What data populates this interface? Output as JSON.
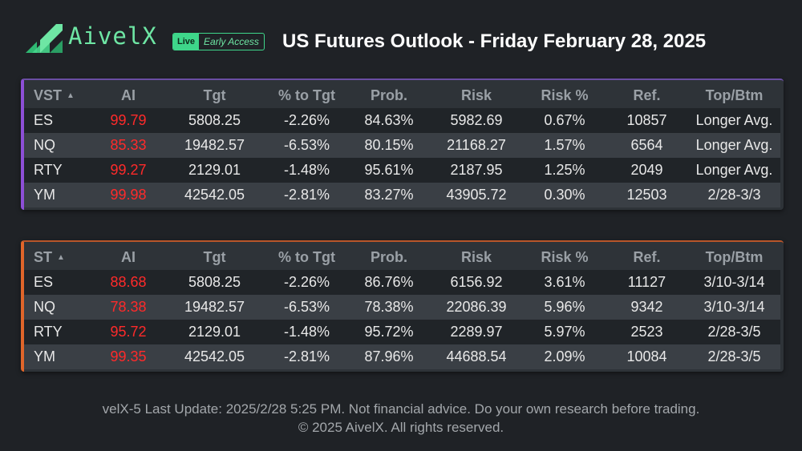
{
  "brand": {
    "name": "AivelX",
    "live": "Live",
    "early_access": "Early Access"
  },
  "title": "US Futures Outlook - Friday February 28, 2025",
  "colors": {
    "brand_green": "#6ee6a4",
    "ai_red": "#ff2a2a",
    "vst_accent": "#8d4fd6",
    "st_accent": "#e0652a"
  },
  "vst_table": {
    "columns": [
      "VST",
      "AI",
      "Tgt",
      "% to Tgt",
      "Prob.",
      "Risk",
      "Risk %",
      "Ref.",
      "Top/Btm"
    ],
    "rows": [
      [
        "ES",
        "99.79",
        "5808.25",
        "-2.26%",
        "84.63%",
        "5982.69",
        "0.67%",
        "10857",
        "Longer Avg."
      ],
      [
        "NQ",
        "85.33",
        "19482.57",
        "-6.53%",
        "80.15%",
        "21168.27",
        "1.57%",
        "6564",
        "Longer Avg."
      ],
      [
        "RTY",
        "99.27",
        "2129.01",
        "-1.48%",
        "95.61%",
        "2187.95",
        "1.25%",
        "2049",
        "Longer Avg."
      ],
      [
        "YM",
        "99.98",
        "42542.05",
        "-2.81%",
        "83.27%",
        "43905.72",
        "0.30%",
        "12503",
        "2/28-3/3"
      ]
    ]
  },
  "st_table": {
    "columns": [
      "ST",
      "AI",
      "Tgt",
      "% to Tgt",
      "Prob.",
      "Risk",
      "Risk %",
      "Ref.",
      "Top/Btm"
    ],
    "rows": [
      [
        "ES",
        "88.68",
        "5808.25",
        "-2.26%",
        "86.76%",
        "6156.92",
        "3.61%",
        "11127",
        "3/10-3/14"
      ],
      [
        "NQ",
        "78.38",
        "19482.57",
        "-6.53%",
        "78.38%",
        "22086.39",
        "5.96%",
        "9342",
        "3/10-3/14"
      ],
      [
        "RTY",
        "95.72",
        "2129.01",
        "-1.48%",
        "95.72%",
        "2289.97",
        "5.97%",
        "2523",
        "2/28-3/5"
      ],
      [
        "YM",
        "99.35",
        "42542.05",
        "-2.81%",
        "87.96%",
        "44688.54",
        "2.09%",
        "10084",
        "2/28-3/5"
      ]
    ]
  },
  "footer": {
    "line1": "velX-5 Last Update: 2025/2/28 5:25 PM. Not financial advice. Do your own research before trading.",
    "line2": "© 2025 AivelX. All rights reserved."
  }
}
